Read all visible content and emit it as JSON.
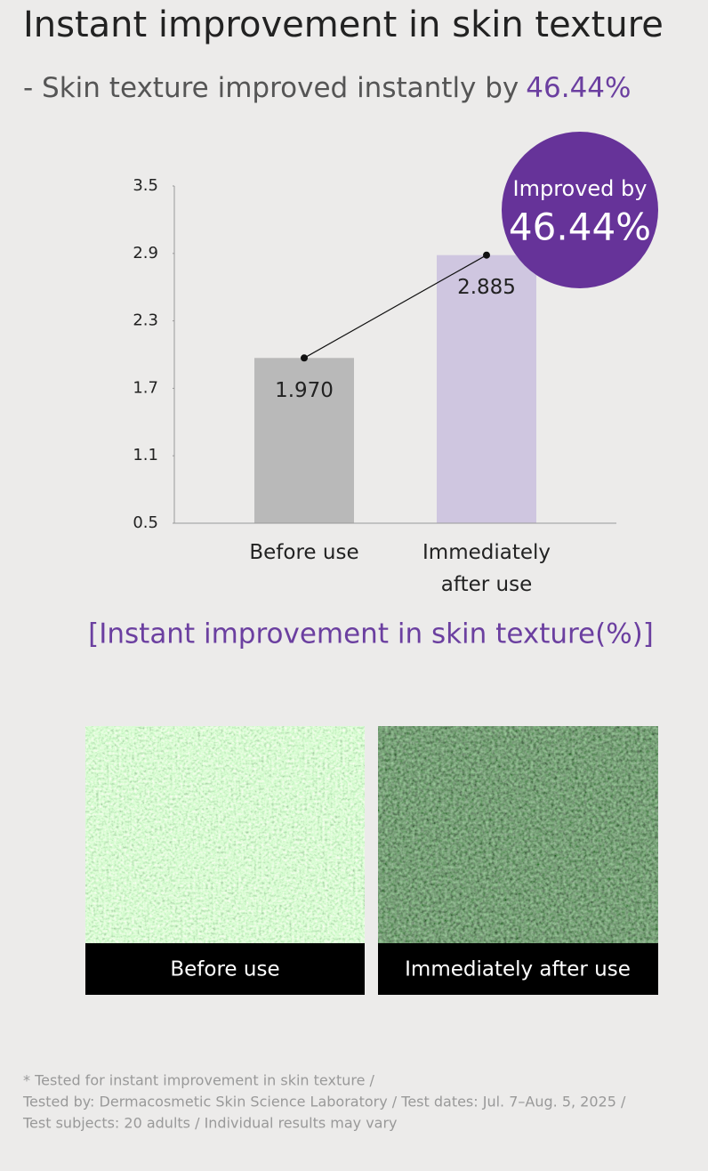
{
  "header": {
    "title": "Instant improvement in skin texture",
    "subtitle": "- Skin texture improved instantly by",
    "subtitle_highlight": "46.44%"
  },
  "chart_data": {
    "type": "bar",
    "title": "[Instant improvement in skin texture(%)]",
    "categories": [
      "Before use",
      "Immediately after use"
    ],
    "values": [
      1.97,
      2.885
    ],
    "value_labels": [
      "1.970",
      "2.885"
    ],
    "colors": [
      "#b9b9b9",
      "#cfc6e0"
    ],
    "ylim": [
      0.5,
      3.5
    ],
    "yticks": [
      0.5,
      1.1,
      1.7,
      2.3,
      2.9,
      3.5
    ],
    "annotation": {
      "label": "Improved by",
      "value": "46.44%"
    }
  },
  "images": [
    {
      "caption": "Before use"
    },
    {
      "caption": "Immediately after use"
    }
  ],
  "footnote": [
    "* Tested for instant improvement in skin texture /",
    "Tested by: Dermacosmetic Skin Science Laboratory / Test dates: Jul. 7–Aug. 5, 2025 /",
    "Test subjects: 20 adults / Individual results may vary"
  ]
}
